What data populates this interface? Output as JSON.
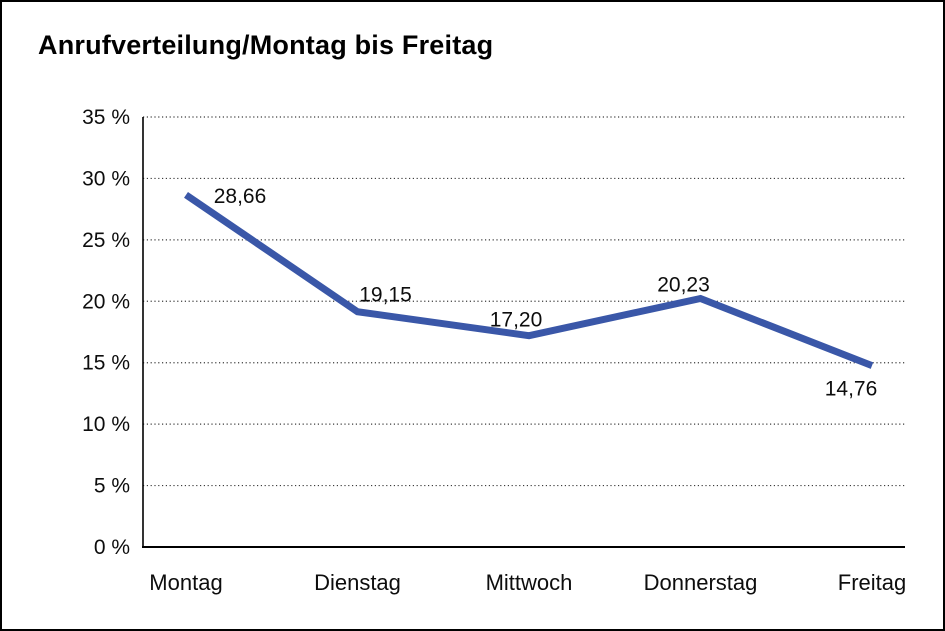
{
  "title": "Anrufverteilung/Montag bis Freitag",
  "chart_data": {
    "type": "line",
    "title": "Anrufverteilung/Montag bis Freitag",
    "categories": [
      "Montag",
      "Dienstag",
      "Mittwoch",
      "Donnerstag",
      "Freitag"
    ],
    "series": [
      {
        "name": "Anrufverteilung",
        "values": [
          28.66,
          19.15,
          17.2,
          20.23,
          14.76
        ],
        "point_labels": [
          "28,66",
          "19,15",
          "17,20",
          "20,23",
          "14,76"
        ],
        "color": "#3A57A8"
      }
    ],
    "xlabel": "",
    "ylabel": "",
    "ylim": [
      0,
      35
    ],
    "y_tick_step": 5,
    "y_tick_values": [
      0,
      5,
      10,
      15,
      20,
      25,
      30,
      35
    ],
    "y_tick_labels": [
      "0 %",
      "5 %",
      "10 %",
      "15 %",
      "20 %",
      "25 %",
      "30 %",
      "35 %"
    ],
    "grid": "horizontal-dotted",
    "legend": "none"
  },
  "colors": {
    "line": "#3A57A8",
    "text": "#0D0D0D",
    "grid": "#3C3C3C",
    "axis": "#000000",
    "background": "#FFFFFF",
    "border": "#000000"
  }
}
